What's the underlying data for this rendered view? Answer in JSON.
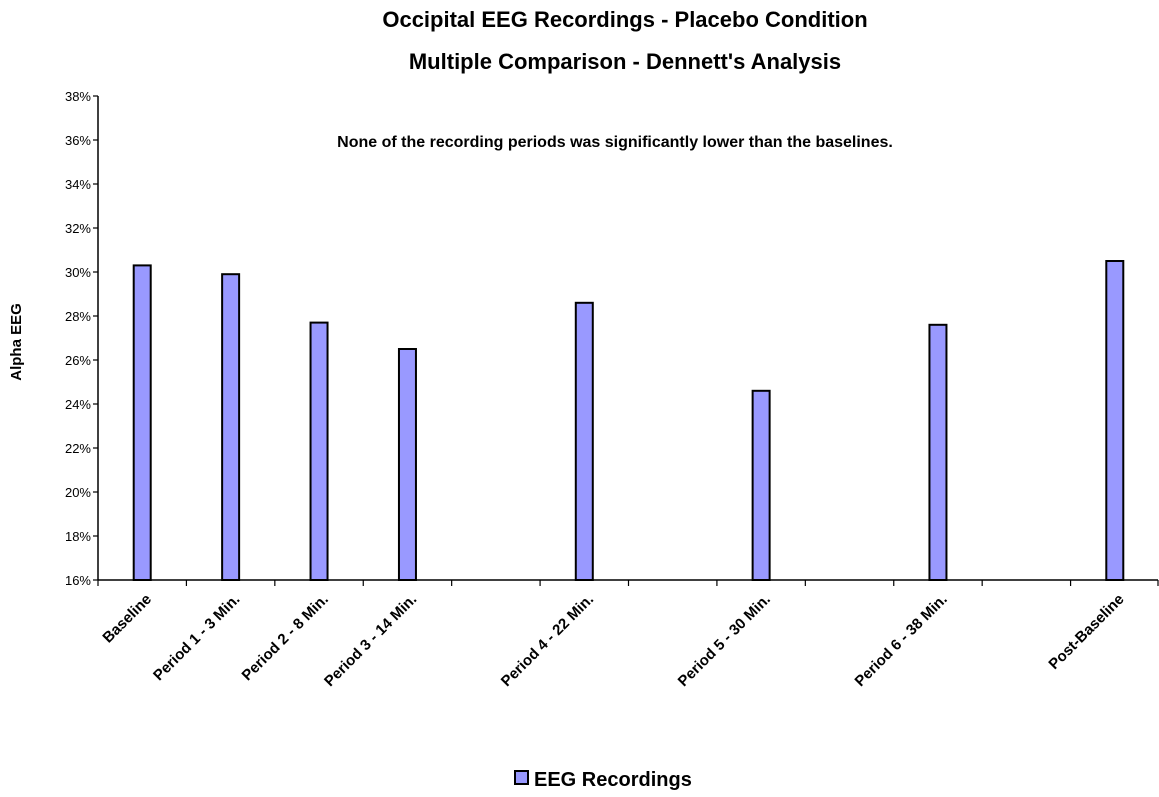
{
  "chart_data": {
    "type": "bar",
    "title": "Occipital EEG Recordings - Placebo Condition",
    "subtitle": "Multiple Comparison - Dennett's Analysis",
    "annotation": "None of the recording periods was significantly lower than the baselines.",
    "ylabel": "Alpha EEG",
    "xlabel": "",
    "ylim": [
      0.16,
      0.38
    ],
    "yticks": [
      0.16,
      0.18,
      0.2,
      0.22,
      0.24,
      0.26,
      0.28,
      0.3,
      0.32,
      0.34,
      0.36,
      0.38
    ],
    "ytick_labels": [
      "16%",
      "18%",
      "20%",
      "22%",
      "24%",
      "26%",
      "28%",
      "30%",
      "32%",
      "34%",
      "36%",
      "38%"
    ],
    "grid": false,
    "legend_position": "bottom",
    "categories": [
      "Baseline",
      "Period 1 - 3 Min.",
      "Period 2 - 8 Min.",
      "Period 3 - 14 Min.",
      "",
      "Period 4 - 22 Min.",
      "",
      "Period 5 - 30 Min.",
      "",
      "Period 6 - 38 Min.",
      "",
      "Post-Baseline"
    ],
    "series": [
      {
        "name": "EEG Recordings",
        "color": "#9999ff",
        "values": [
          0.303,
          0.299,
          0.277,
          0.265,
          null,
          0.286,
          null,
          0.246,
          null,
          0.276,
          null,
          0.305
        ]
      }
    ]
  }
}
